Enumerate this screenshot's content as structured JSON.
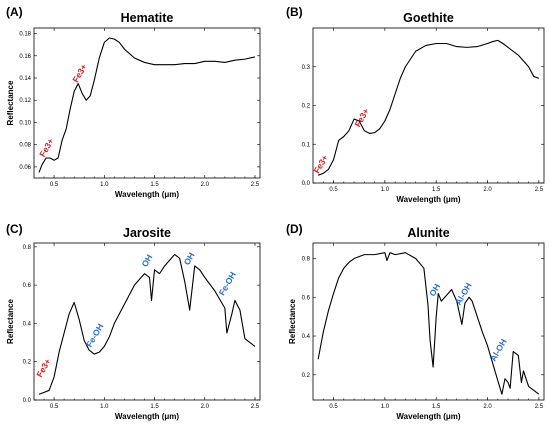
{
  "chart_data": [
    {
      "type": "line",
      "panel_label": "(A)",
      "title": "Hematite",
      "xlabel": "Wavelength (μm)",
      "ylabel": "Reflectance",
      "xlim": [
        0.3,
        2.55
      ],
      "ylim": [
        0.05,
        0.185
      ],
      "xticks": [
        0.5,
        1.0,
        1.5,
        2.0,
        2.5
      ],
      "yticks": [
        0.06,
        0.08,
        0.1,
        0.12,
        0.14,
        0.16,
        0.18
      ],
      "ytick_labels": [
        "0.06",
        "0.08",
        "0.10",
        "0.12",
        "0.14",
        "0.16",
        "0.18"
      ],
      "x": [
        0.35,
        0.38,
        0.42,
        0.46,
        0.5,
        0.54,
        0.58,
        0.62,
        0.66,
        0.7,
        0.74,
        0.78,
        0.82,
        0.86,
        0.9,
        0.95,
        1.0,
        1.05,
        1.1,
        1.15,
        1.2,
        1.3,
        1.4,
        1.5,
        1.6,
        1.7,
        1.8,
        1.9,
        2.0,
        2.1,
        2.2,
        2.3,
        2.4,
        2.5
      ],
      "y": [
        0.055,
        0.062,
        0.068,
        0.068,
        0.066,
        0.068,
        0.084,
        0.094,
        0.112,
        0.128,
        0.135,
        0.126,
        0.12,
        0.124,
        0.138,
        0.158,
        0.172,
        0.176,
        0.175,
        0.172,
        0.166,
        0.158,
        0.154,
        0.152,
        0.152,
        0.152,
        0.153,
        0.153,
        0.155,
        0.155,
        0.154,
        0.156,
        0.157,
        0.159
      ],
      "annotations": [
        {
          "text": "Fe3+",
          "x": 0.45,
          "y": 0.076,
          "color": "#d42020"
        },
        {
          "text": "Fe3+",
          "x": 0.78,
          "y": 0.143,
          "color": "#d42020"
        }
      ]
    },
    {
      "type": "line",
      "panel_label": "(B)",
      "title": "Goethite",
      "xlabel": "Wavelength (μm)",
      "ylabel": "",
      "xlim": [
        0.3,
        2.55
      ],
      "ylim": [
        0.0,
        0.4
      ],
      "xticks": [
        0.5,
        1.0,
        1.5,
        2.0,
        2.5
      ],
      "yticks": [
        0.0,
        0.1,
        0.2,
        0.3
      ],
      "ytick_labels": [
        "0.0",
        "0.1",
        "0.2",
        "0.3"
      ],
      "x": [
        0.35,
        0.4,
        0.45,
        0.5,
        0.55,
        0.6,
        0.65,
        0.7,
        0.75,
        0.8,
        0.85,
        0.9,
        0.95,
        1.0,
        1.05,
        1.1,
        1.15,
        1.2,
        1.3,
        1.4,
        1.5,
        1.6,
        1.7,
        1.8,
        1.9,
        2.0,
        2.05,
        2.1,
        2.15,
        2.2,
        2.3,
        2.4,
        2.45,
        2.5
      ],
      "y": [
        0.02,
        0.025,
        0.035,
        0.06,
        0.11,
        0.12,
        0.135,
        0.165,
        0.16,
        0.135,
        0.128,
        0.13,
        0.14,
        0.16,
        0.19,
        0.23,
        0.27,
        0.3,
        0.34,
        0.355,
        0.36,
        0.36,
        0.352,
        0.35,
        0.352,
        0.36,
        0.365,
        0.368,
        0.36,
        0.35,
        0.33,
        0.3,
        0.275,
        0.27
      ],
      "annotations": [
        {
          "text": "Fe3+",
          "x": 0.4,
          "y": 0.045,
          "color": "#d42020"
        },
        {
          "text": "Fe3+",
          "x": 0.8,
          "y": 0.165,
          "color": "#d42020"
        }
      ]
    },
    {
      "type": "line",
      "panel_label": "(C)",
      "title": "Jarosite",
      "xlabel": "Wavelength (μm)",
      "ylabel": "Reflectance",
      "xlim": [
        0.3,
        2.55
      ],
      "ylim": [
        0.0,
        0.82
      ],
      "xticks": [
        0.5,
        1.0,
        1.5,
        2.0,
        2.5
      ],
      "yticks": [
        0.0,
        0.2,
        0.4,
        0.6,
        0.8
      ],
      "ytick_labels": [
        "0.0",
        "0.2",
        "0.4",
        "0.6",
        "0.8"
      ],
      "x": [
        0.35,
        0.4,
        0.45,
        0.5,
        0.55,
        0.6,
        0.65,
        0.7,
        0.75,
        0.8,
        0.85,
        0.9,
        0.95,
        1.0,
        1.05,
        1.1,
        1.2,
        1.3,
        1.4,
        1.45,
        1.47,
        1.5,
        1.55,
        1.6,
        1.7,
        1.75,
        1.8,
        1.85,
        1.9,
        1.95,
        2.0,
        2.1,
        2.2,
        2.22,
        2.27,
        2.3,
        2.35,
        2.4,
        2.45,
        2.5
      ],
      "y": [
        0.03,
        0.04,
        0.05,
        0.12,
        0.25,
        0.35,
        0.45,
        0.51,
        0.42,
        0.31,
        0.26,
        0.24,
        0.25,
        0.28,
        0.33,
        0.4,
        0.5,
        0.6,
        0.66,
        0.64,
        0.52,
        0.68,
        0.66,
        0.7,
        0.76,
        0.74,
        0.62,
        0.47,
        0.7,
        0.68,
        0.64,
        0.57,
        0.48,
        0.35,
        0.45,
        0.52,
        0.47,
        0.32,
        0.3,
        0.28
      ],
      "annotations": [
        {
          "text": "Fe3+",
          "x": 0.42,
          "y": 0.16,
          "color": "#d42020"
        },
        {
          "text": "Fe-OH",
          "x": 0.93,
          "y": 0.33,
          "color": "#2a6fd0"
        },
        {
          "text": "OH",
          "x": 1.45,
          "y": 0.72,
          "color": "#2a6fd0"
        },
        {
          "text": "OH",
          "x": 1.87,
          "y": 0.73,
          "color": "#2a6fd0"
        },
        {
          "text": "Fe-OH",
          "x": 2.25,
          "y": 0.6,
          "color": "#2a6fd0"
        }
      ]
    },
    {
      "type": "line",
      "panel_label": "(D)",
      "title": "Alunite",
      "xlabel": "Wavelength (μm)",
      "ylabel": "Reflectance",
      "xlim": [
        0.3,
        2.55
      ],
      "ylim": [
        0.07,
        0.88
      ],
      "xticks": [
        0.5,
        1.0,
        1.5,
        2.0,
        2.5
      ],
      "yticks": [
        0.2,
        0.4,
        0.6,
        0.8
      ],
      "ytick_labels": [
        "0.2",
        "0.4",
        "0.6",
        "0.8"
      ],
      "x": [
        0.35,
        0.4,
        0.45,
        0.5,
        0.55,
        0.6,
        0.65,
        0.7,
        0.8,
        0.9,
        1.0,
        1.02,
        1.05,
        1.1,
        1.2,
        1.3,
        1.38,
        1.42,
        1.44,
        1.47,
        1.5,
        1.52,
        1.55,
        1.6,
        1.65,
        1.7,
        1.75,
        1.78,
        1.82,
        1.85,
        1.9,
        1.95,
        2.0,
        2.05,
        2.1,
        2.14,
        2.17,
        2.2,
        2.22,
        2.25,
        2.3,
        2.33,
        2.35,
        2.4,
        2.45,
        2.5
      ],
      "y": [
        0.28,
        0.42,
        0.53,
        0.62,
        0.7,
        0.75,
        0.78,
        0.8,
        0.82,
        0.82,
        0.83,
        0.79,
        0.83,
        0.82,
        0.83,
        0.8,
        0.75,
        0.56,
        0.38,
        0.24,
        0.5,
        0.62,
        0.58,
        0.61,
        0.64,
        0.58,
        0.46,
        0.57,
        0.6,
        0.58,
        0.5,
        0.42,
        0.35,
        0.26,
        0.17,
        0.1,
        0.18,
        0.16,
        0.13,
        0.32,
        0.3,
        0.16,
        0.22,
        0.14,
        0.12,
        0.1
      ],
      "annotations": [
        {
          "text": "OH",
          "x": 1.51,
          "y": 0.63,
          "color": "#2a6fd0"
        },
        {
          "text": "Al-OH",
          "x": 1.79,
          "y": 0.61,
          "color": "#2a6fd0"
        },
        {
          "text": "Al-OH",
          "x": 2.13,
          "y": 0.32,
          "color": "#2a6fd0"
        }
      ]
    }
  ]
}
